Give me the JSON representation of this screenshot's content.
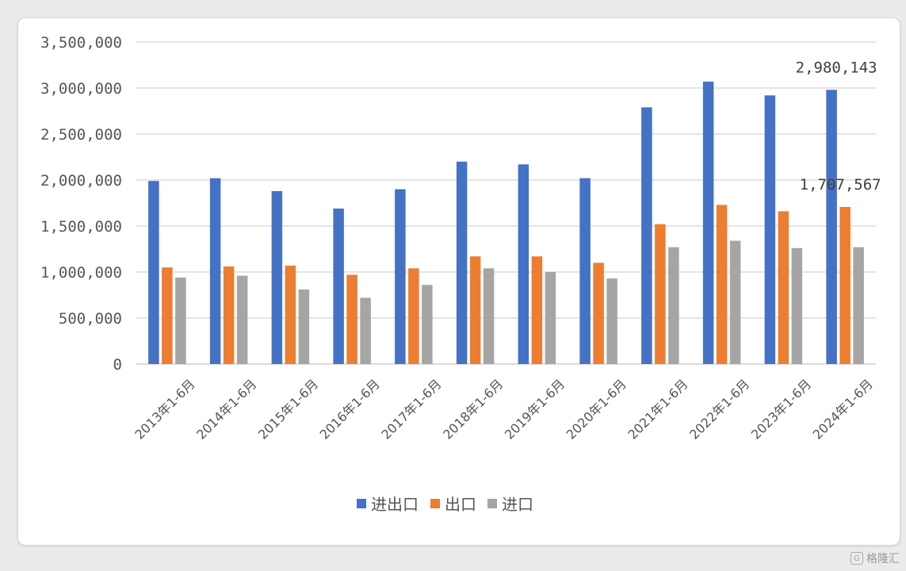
{
  "chart_data": {
    "type": "bar",
    "title": "",
    "xlabel": "",
    "ylabel": "",
    "categories": [
      "2013年1-6月",
      "2014年1-6月",
      "2015年1-6月",
      "2016年1-6月",
      "2017年1-6月",
      "2018年1-6月",
      "2019年1-6月",
      "2020年1-6月",
      "2021年1-6月",
      "2022年1-6月",
      "2023年1-6月",
      "2024年1-6月"
    ],
    "series": [
      {
        "name": "进出口",
        "color": "#4472c4",
        "values": [
          1990000,
          2020000,
          1880000,
          1690000,
          1900000,
          2200000,
          2170000,
          2020000,
          2790000,
          3070000,
          2920000,
          2980143
        ]
      },
      {
        "name": "出口",
        "color": "#ed7d31",
        "values": [
          1050000,
          1060000,
          1070000,
          970000,
          1040000,
          1170000,
          1170000,
          1100000,
          1520000,
          1730000,
          1660000,
          1707567
        ]
      },
      {
        "name": "进口",
        "color": "#a5a5a5",
        "values": [
          940000,
          960000,
          810000,
          720000,
          860000,
          1040000,
          1000000,
          930000,
          1270000,
          1340000,
          1260000,
          1270000
        ]
      }
    ],
    "ylim": [
      0,
      3500000
    ],
    "yticks": [
      "0",
      "500,000",
      "1,000,000",
      "1,500,000",
      "2,000,000",
      "2,500,000",
      "3,000,000",
      "3,500,000"
    ],
    "data_labels": [
      {
        "series": 0,
        "index": 11,
        "text": "2,980,143"
      },
      {
        "series": 1,
        "index": 11,
        "text": "1,707,567"
      }
    ],
    "grid": true,
    "legend_position": "bottom"
  },
  "watermark": {
    "text": "格隆汇",
    "icon": "g-logo-icon"
  }
}
